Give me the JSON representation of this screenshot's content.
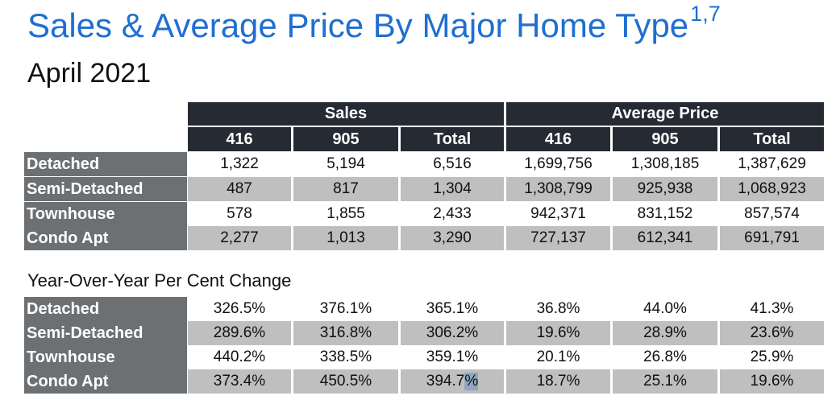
{
  "title": "Sales & Average Price By Major Home Type",
  "title_superscript": "1,7",
  "subtitle": "April 2021",
  "table1": {
    "group_headers": [
      "Sales",
      "Average Price"
    ],
    "columns": [
      "416",
      "905",
      "Total",
      "416",
      "905",
      "Total"
    ],
    "rows": [
      {
        "label": "Detached",
        "values": [
          "1,322",
          "5,194",
          "6,516",
          "1,699,756",
          "1,308,185",
          "1,387,629"
        ]
      },
      {
        "label": "Semi-Detached",
        "values": [
          "487",
          "817",
          "1,304",
          "1,308,799",
          "925,938",
          "1,068,923"
        ]
      },
      {
        "label": "Townhouse",
        "values": [
          "578",
          "1,855",
          "2,433",
          "942,371",
          "831,152",
          "857,574"
        ]
      },
      {
        "label": "Condo Apt",
        "values": [
          "2,277",
          "1,013",
          "3,290",
          "727,137",
          "612,341",
          "691,791"
        ]
      }
    ]
  },
  "section_title": "Year-Over-Year Per Cent Change",
  "table2": {
    "rows": [
      {
        "label": "Detached",
        "values": [
          "326.5%",
          "376.1%",
          "365.1%",
          "36.8%",
          "44.0%",
          "41.3%"
        ]
      },
      {
        "label": "Semi-Detached",
        "values": [
          "289.6%",
          "316.8%",
          "306.2%",
          "19.6%",
          "28.9%",
          "23.6%"
        ]
      },
      {
        "label": "Townhouse",
        "values": [
          "440.2%",
          "338.5%",
          "359.1%",
          "20.1%",
          "26.8%",
          "25.9%"
        ]
      },
      {
        "label": "Condo Apt",
        "values": [
          "373.4%",
          "450.5%",
          "394.7",
          "18.7%",
          "25.1%",
          "19.6%"
        ]
      }
    ],
    "selected_fragment": "%"
  }
}
